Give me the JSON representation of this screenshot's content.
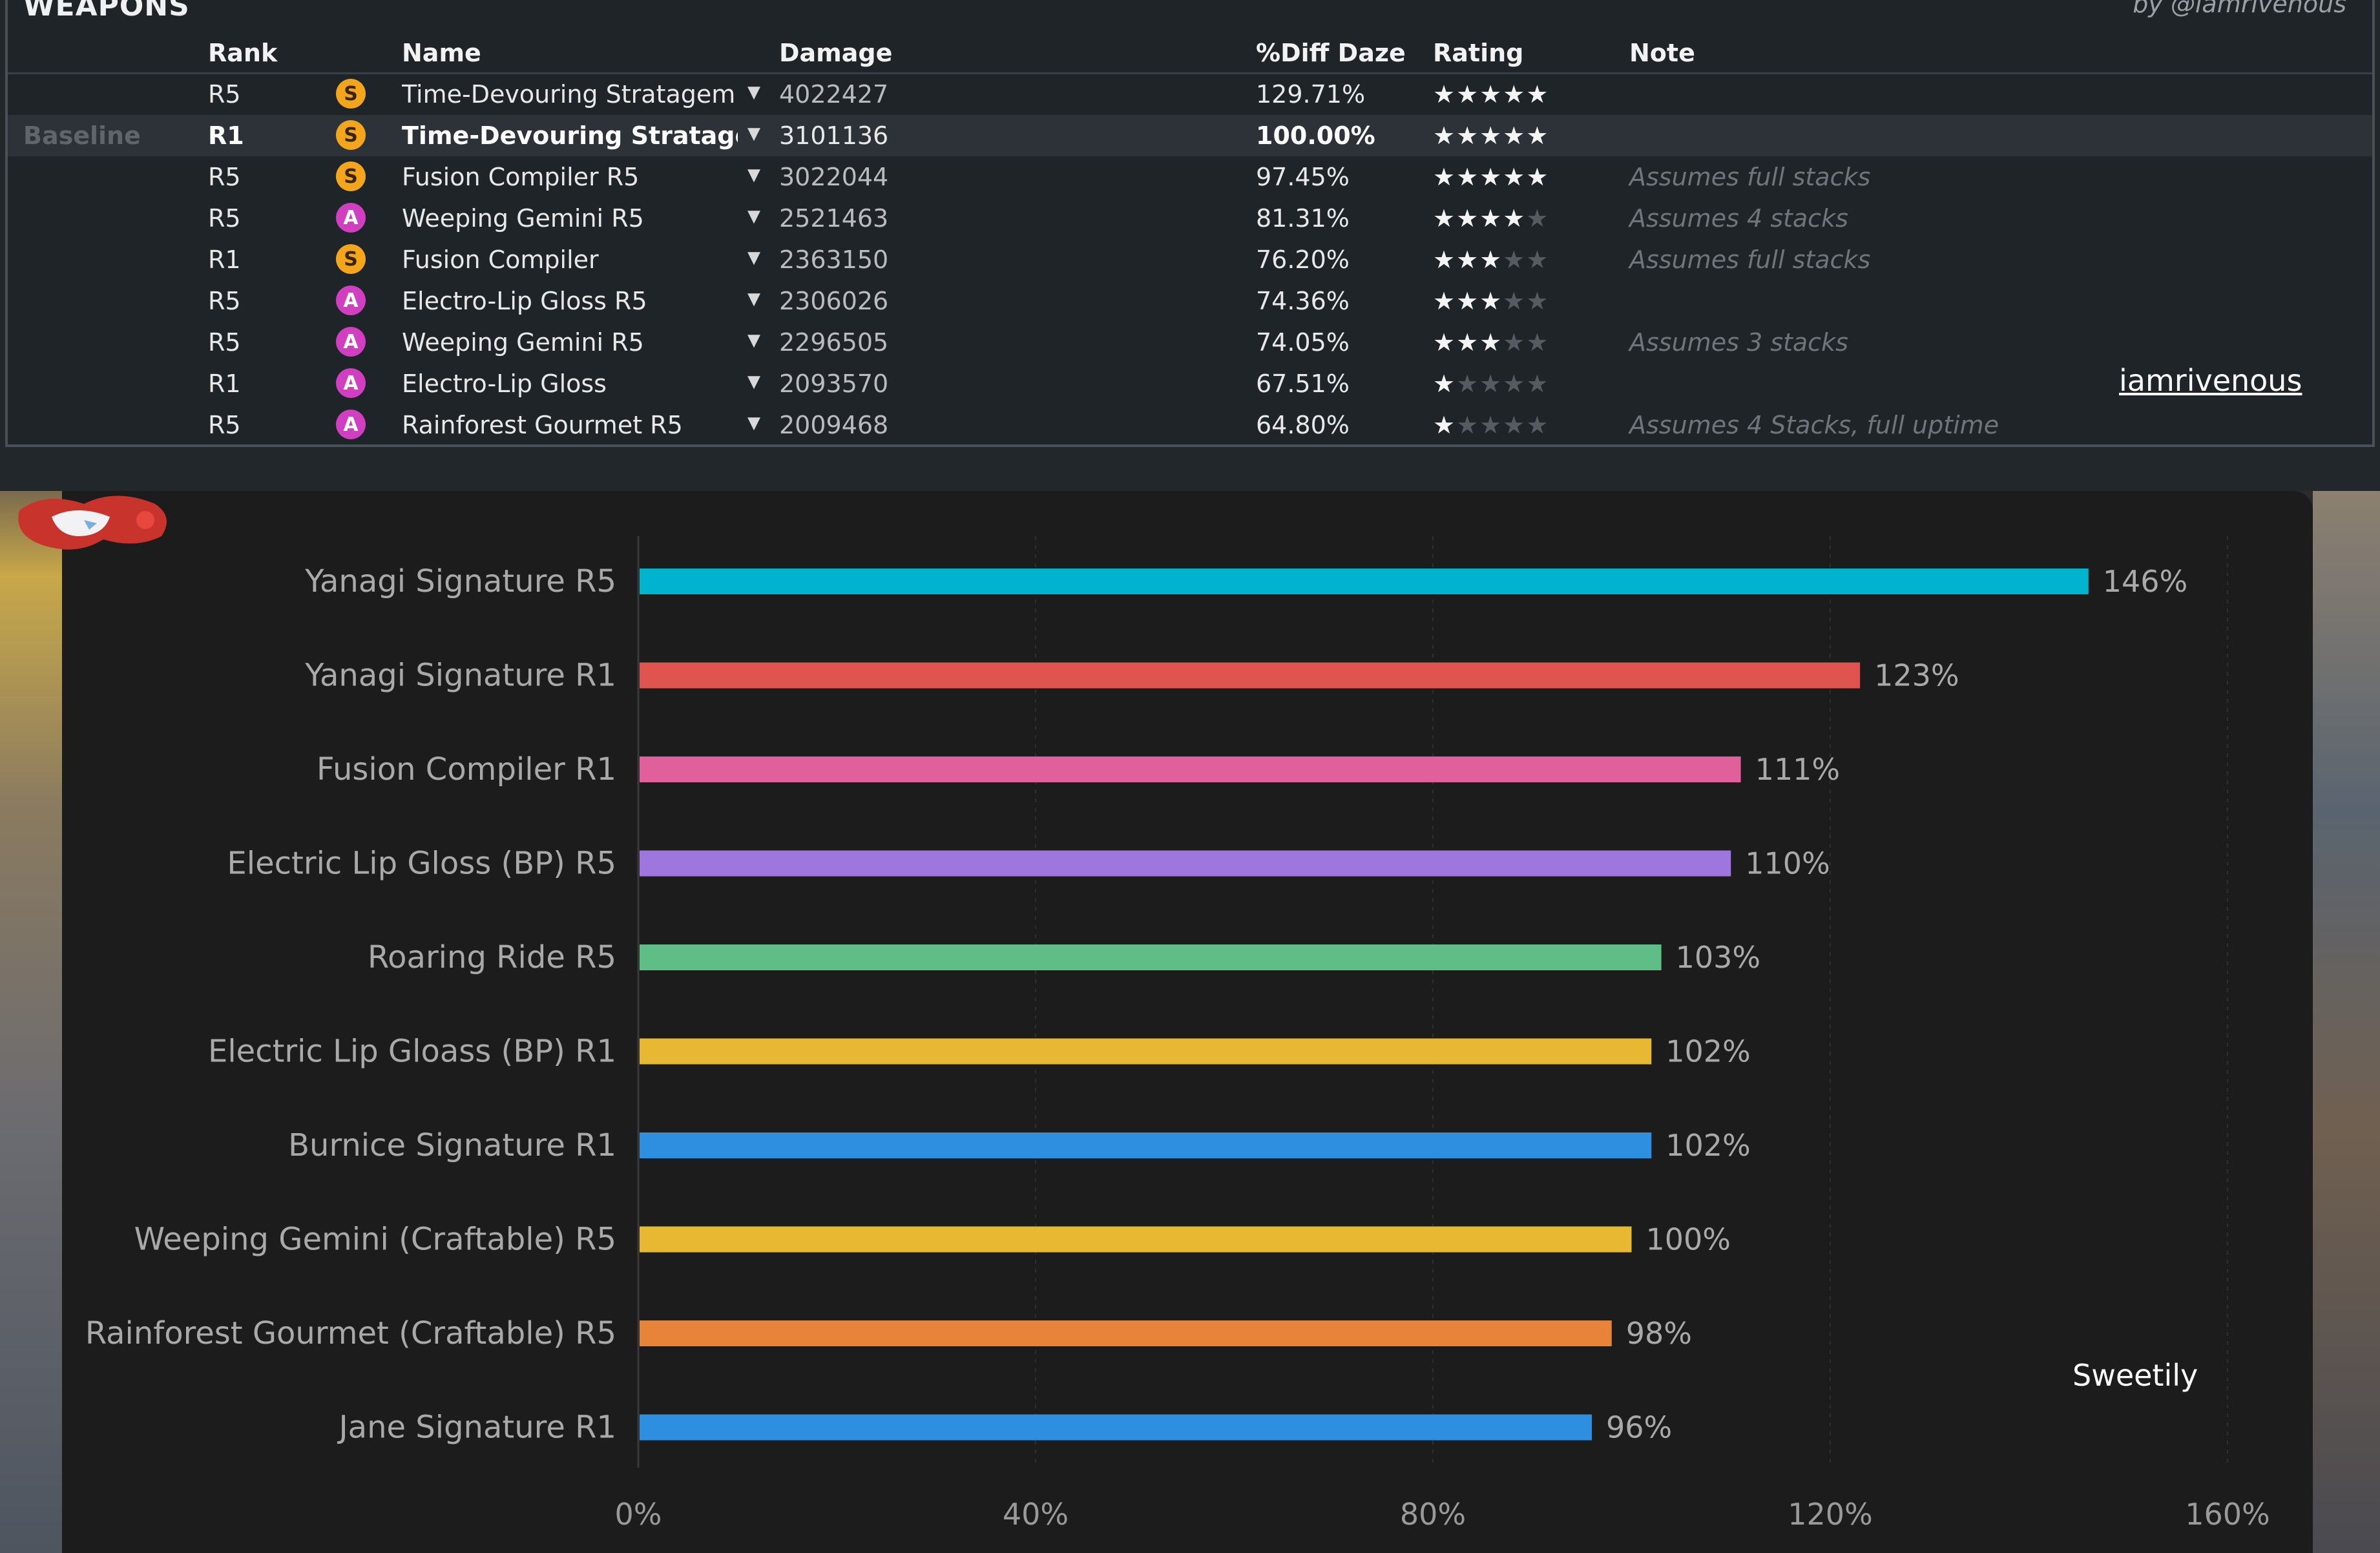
{
  "table": {
    "title": "WEAPONS",
    "credit": "by @iamrivenous",
    "headers": {
      "rank": "Rank",
      "name": "Name",
      "damage": "Damage",
      "diff": "%Diff Daze",
      "rating": "Rating",
      "note": "Note"
    },
    "rows": [
      {
        "label": "",
        "rank": "R5",
        "badge": "S",
        "name": "Time-Devouring Stratagem",
        "damage": "4022427",
        "diff": "129.71%",
        "stars": 5,
        "stars_display": "★★★★★",
        "note": ""
      },
      {
        "label": "Baseline",
        "rank": "R1",
        "badge": "S",
        "name": "Time-Devouring Stratagem",
        "damage": "3101136",
        "diff": "100.00%",
        "stars": 5,
        "stars_display": "★★★★★",
        "note": ""
      },
      {
        "label": "",
        "rank": "R5",
        "badge": "S",
        "name": "Fusion Compiler R5",
        "damage": "3022044",
        "diff": "97.45%",
        "stars": 5,
        "stars_display": "★★★★★",
        "note": "Assumes full stacks"
      },
      {
        "label": "",
        "rank": "R5",
        "badge": "A",
        "name": "Weeping Gemini R5",
        "damage": "2521463",
        "diff": "81.31%",
        "stars": 4,
        "stars_display": "★★★★☆",
        "note": "Assumes 4 stacks"
      },
      {
        "label": "",
        "rank": "R1",
        "badge": "S",
        "name": "Fusion Compiler",
        "damage": "2363150",
        "diff": "76.20%",
        "stars": 3,
        "stars_display": "★★★☆☆",
        "note": "Assumes full stacks"
      },
      {
        "label": "",
        "rank": "R5",
        "badge": "A",
        "name": "Electro-Lip Gloss R5",
        "damage": "2306026",
        "diff": "74.36%",
        "stars": 3,
        "stars_display": "★★★☆☆",
        "note": ""
      },
      {
        "label": "",
        "rank": "R5",
        "badge": "A",
        "name": "Weeping Gemini R5",
        "damage": "2296505",
        "diff": "74.05%",
        "stars": 3,
        "stars_display": "★★★☆☆",
        "note": "Assumes 3 stacks"
      },
      {
        "label": "",
        "rank": "R1",
        "badge": "A",
        "name": "Electro-Lip Gloss",
        "damage": "2093570",
        "diff": "67.51%",
        "stars": 1,
        "stars_display": "★☆☆☆☆",
        "note": ""
      },
      {
        "label": "",
        "rank": "R5",
        "badge": "A",
        "name": "Rainforest Gourmet R5",
        "damage": "2009468",
        "diff": "64.80%",
        "stars": 1,
        "stars_display": "★☆☆☆☆",
        "note": "Assumes 4 Stacks, full uptime"
      }
    ],
    "badge_colors": {
      "S": "#f3a51b",
      "A": "#cf3fc0"
    },
    "watermark": "iamrivenous"
  },
  "chart_data": {
    "type": "bar",
    "orientation": "horizontal",
    "categories": [
      "Yanagi Signature R5",
      "Yanagi Signature R1",
      "Fusion Compiler R1",
      "Electric Lip Gloss (BP) R5",
      "Roaring Ride R5",
      "Electric Lip Gloass (BP) R1",
      "Burnice Signature R1",
      "Weeping Gemini (Craftable) R5",
      "Rainforest Gourmet (Craftable) R5",
      "Jane Signature R1"
    ],
    "values": [
      146,
      123,
      111,
      110,
      103,
      102,
      102,
      100,
      98,
      96
    ],
    "value_labels": [
      "146%",
      "123%",
      "111%",
      "110%",
      "103%",
      "102%",
      "102%",
      "100%",
      "98%",
      "96%"
    ],
    "colors": [
      "#00b4d0",
      "#e0544f",
      "#e0609c",
      "#9f76dd",
      "#5fbd86",
      "#e8b832",
      "#2e8fe0",
      "#e8b832",
      "#e8843a",
      "#2e8fe0"
    ],
    "xlim": [
      0,
      160
    ],
    "xticks": [
      0,
      40,
      80,
      120,
      160
    ],
    "xtick_labels": [
      "0%",
      "40%",
      "80%",
      "120%",
      "160%"
    ],
    "grid": "vertical dashed",
    "watermark": "Sweetily"
  }
}
